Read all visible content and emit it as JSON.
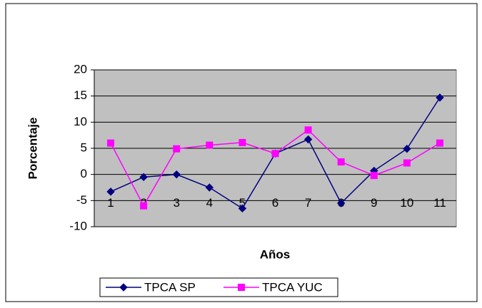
{
  "chart_data": {
    "type": "line",
    "categories": [
      "1",
      "2",
      "3",
      "4",
      "5",
      "6",
      "7",
      "8",
      "9",
      "10",
      "11"
    ],
    "series": [
      {
        "name": "TPCA SP",
        "color": "#000080",
        "marker": "diamond",
        "values": [
          -3.3,
          -0.5,
          0,
          -2.5,
          -6.5,
          4,
          6.7,
          -5.5,
          0.7,
          4.9,
          14.7
        ]
      },
      {
        "name": "TPCA YUC",
        "color": "#ff00ff",
        "marker": "square",
        "values": [
          6,
          -6,
          4.9,
          5.6,
          6.1,
          4,
          8.5,
          2.4,
          -0.2,
          2.2,
          6
        ]
      }
    ],
    "xlabel": "Años",
    "ylabel": "Porcentaje",
    "ylim": [
      -10,
      20
    ],
    "yticks": [
      -10,
      -5,
      0,
      5,
      10,
      15,
      20
    ],
    "grid": true,
    "legend": "bottom"
  }
}
